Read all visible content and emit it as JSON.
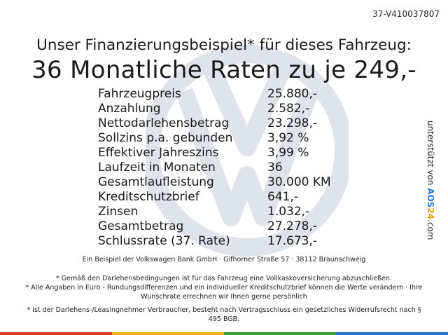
{
  "reference": "37-V410037807",
  "headline_sub": "Unser Finanzierungsbeispiel* für dieses Fahrzeug:",
  "headline_main": "36 Monatliche Raten zu je 249,-",
  "rows": [
    {
      "label": "Fahrzeugpreis",
      "value": "25.880,-"
    },
    {
      "label": "Anzahlung",
      "value": "2.582,-"
    },
    {
      "label": "Nettodarlehensbetrag",
      "value": "23.298,-"
    },
    {
      "label": "Sollzins p.a. gebunden",
      "value": "3,92 %"
    },
    {
      "label": "Effektiver Jahreszins",
      "value": "3,99 %"
    },
    {
      "label": "Laufzeit in Monaten",
      "value": "36"
    },
    {
      "label": "Gesamtlaufleistung",
      "value": "30.000 KM"
    },
    {
      "label": "Kreditschutzbrief",
      "value": "641,-"
    },
    {
      "label": "Zinsen",
      "value": "1.032,-"
    },
    {
      "label": "Gesamtbetrag",
      "value": "27.278,-"
    },
    {
      "label": "Schlussrate (37. Rate)",
      "value": "17.673,-"
    }
  ],
  "side_text": {
    "prefix": "unterstützt von ",
    "brand_a": "AOS",
    "brand_b": "24",
    "suffix": ".com"
  },
  "footnotes": {
    "example": "Ein Beispiel der Volkswagen Bank GmbH · Gifhorner Straße 57 · 38112 Braunschweig",
    "note1": "* Gemäß den Darlehensbedingungen ist für das Fahrzeug eine Vollkaskoversicherung abzuschließen.",
    "note2": "* Alle Angaben in Euro - Rundungsdifferenzen und ein individueller Kreditschutzbrief können die Werte verändern · Ihre Wunschrate errechnen wir Ihnen gerne persönlich",
    "note3": "* Ist der Darlehens-/Leasingnehmer Verbraucher, besteht nach Vertragsschluss ein gesetzliches Widerrufsrecht nach § 495 BGB."
  },
  "colors": {
    "watermark": "#dfe3ea",
    "stripe": [
      "#d93a2b",
      "#f2b21b",
      "#3b9b3a",
      "#2a6fc9"
    ]
  },
  "icons": {
    "watermark": "vw-logo-icon"
  }
}
